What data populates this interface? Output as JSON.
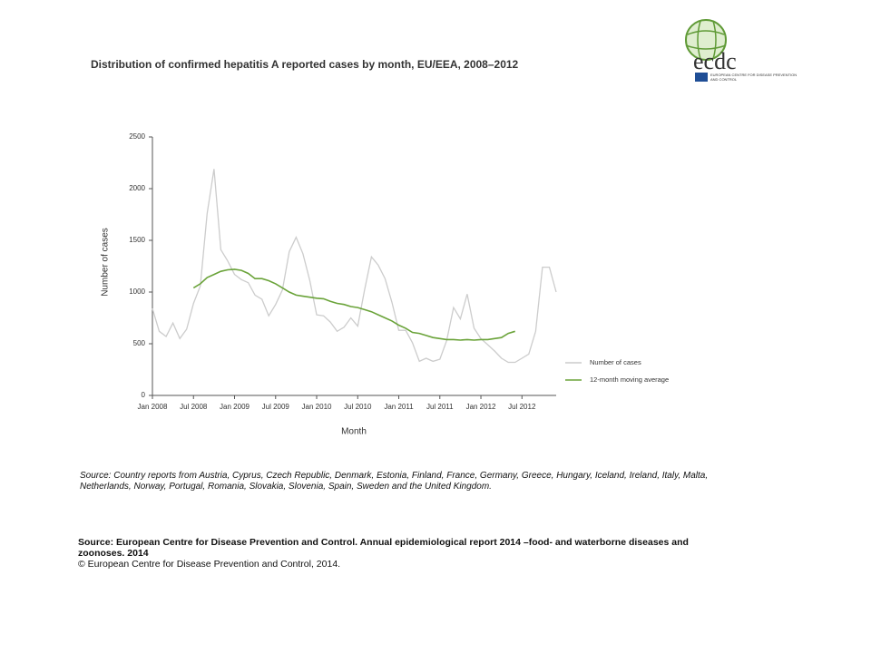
{
  "chart_data": {
    "type": "line",
    "title": "Distribution  of confirmed  hepatitis A reported cases by month, EU/EEA,  2008–2012",
    "x_label": "Month",
    "y_label": "Number of cases",
    "categories": [
      "Jan 2008",
      null,
      null,
      null,
      null,
      null,
      "Jul 2008",
      null,
      null,
      null,
      null,
      null,
      "Jan 2009",
      null,
      null,
      null,
      null,
      null,
      "Jul 2009",
      null,
      null,
      null,
      null,
      null,
      "Jan 2010",
      null,
      null,
      null,
      null,
      null,
      "Jul 2010",
      null,
      null,
      null,
      null,
      null,
      "Jan 2011",
      null,
      null,
      null,
      null,
      null,
      "Jul 2011",
      null,
      null,
      null,
      null,
      null,
      "Jan 2012",
      null,
      null,
      null,
      null,
      null,
      "Jul 2012",
      null,
      null,
      null,
      null,
      null
    ],
    "series": [
      {
        "name": "Number of cases",
        "color": "#cccccc",
        "values": [
          840,
          620,
          570,
          700,
          550,
          640,
          890,
          1060,
          1760,
          2190,
          1410,
          1300,
          1170,
          1120,
          1090,
          970,
          930,
          770,
          880,
          1020,
          1390,
          1530,
          1370,
          1110,
          780,
          770,
          710,
          620,
          660,
          750,
          670,
          1020,
          1340,
          1260,
          1130,
          900,
          630,
          630,
          510,
          330,
          360,
          330,
          350,
          530,
          850,
          740,
          980,
          650,
          550,
          490,
          430,
          360,
          320,
          320,
          360,
          400,
          620,
          1240,
          1240,
          1000
        ]
      },
      {
        "name": "12-month moving average",
        "color": "#6aa339",
        "values": [
          null,
          null,
          null,
          null,
          null,
          null,
          1040,
          1080,
          1140,
          1170,
          1200,
          1215,
          1220,
          1210,
          1180,
          1130,
          1130,
          1110,
          1080,
          1040,
          1000,
          970,
          960,
          950,
          940,
          935,
          910,
          890,
          880,
          860,
          850,
          830,
          810,
          780,
          750,
          720,
          680,
          650,
          610,
          600,
          580,
          560,
          550,
          540,
          540,
          535,
          540,
          535,
          540,
          540,
          550,
          560,
          600,
          620,
          null,
          null,
          null,
          null,
          null,
          null
        ]
      }
    ],
    "ylim": [
      0,
      2500
    ],
    "yticks": [
      0,
      500,
      1000,
      1500,
      2000,
      2500
    ],
    "grid": false,
    "legend": "right"
  },
  "logo": {
    "wordmark": "ecdc",
    "lines": [
      "EUROPEAN CENTRE FOR DISEASE PREVENTION",
      "AND CONTROL"
    ]
  },
  "notes": {
    "countries": "Source: Country reports from Austria, Cyprus, Czech Republic, Denmark, Estonia, Finland, France, Germany, Greece, Hungary, Iceland, Ireland, Italy, Malta, Netherlands, Norway, Portugal, Romania, Slovakia, Slovenia, Spain, Sweden and the United Kingdom.",
    "citation": "Source: European Centre for Disease Prevention and Control.  Annual epidemiological report 2014 –food- and waterborne diseases and zoonoses. 2014",
    "copyright": "© European Centre for Disease Prevention and Control, 2014."
  }
}
